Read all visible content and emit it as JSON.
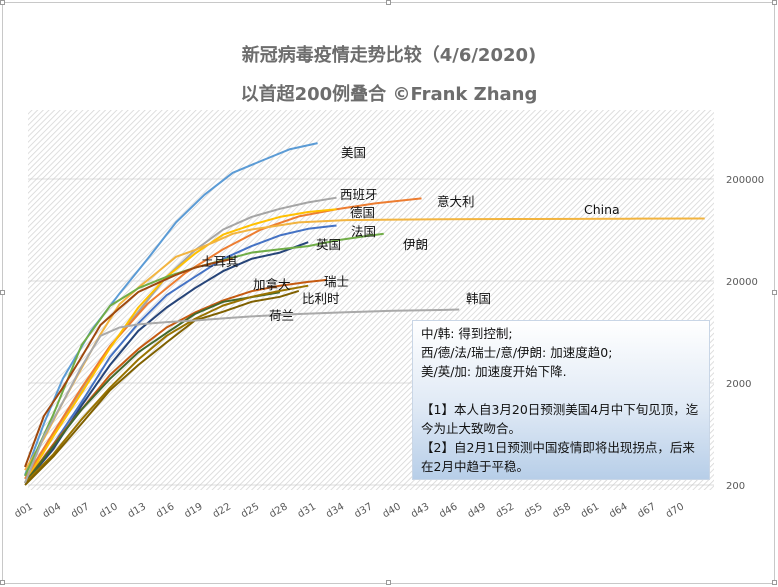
{
  "chart_data": {
    "type": "line",
    "title": "新冠病毒疫情走势比较（4/6/2020)",
    "subtitle": "以首超200例叠合 ©Frank Zhang",
    "y_scale": "log",
    "ylim": [
      200,
      600000
    ],
    "y_ticks": [
      {
        "value": 200,
        "label": "200"
      },
      {
        "value": 2000,
        "label": "2000"
      },
      {
        "value": 20000,
        "label": "20000"
      },
      {
        "value": 200000,
        "label": "200000"
      }
    ],
    "x_ticks": [
      "d01",
      "d04",
      "d07",
      "d10",
      "d13",
      "d16",
      "d19",
      "d22",
      "d25",
      "d28",
      "d31",
      "d34",
      "d37",
      "d40",
      "d43",
      "d46",
      "d49",
      "d52",
      "d55",
      "d58",
      "d61",
      "d64",
      "d67",
      "d70"
    ],
    "series": [
      {
        "name": "美国",
        "color": "#5b9bd5",
        "days": [
          1,
          3,
          5,
          8,
          11,
          14,
          17,
          20,
          23,
          26,
          29,
          32
        ],
        "values": [
          250,
          800,
          2200,
          6500,
          15000,
          33000,
          75000,
          140000,
          230000,
          300000,
          390000,
          450000
        ]
      },
      {
        "name": "西班牙",
        "color": "#a5a5a5",
        "days": [
          1,
          4,
          7,
          10,
          13,
          16,
          19,
          22,
          25,
          28,
          31,
          34
        ],
        "values": [
          230,
          600,
          1700,
          4500,
          10000,
          22000,
          40000,
          64000,
          85000,
          102000,
          118000,
          131000
        ]
      },
      {
        "name": "意大利",
        "color": "#ed7d31",
        "days": [
          1,
          4,
          7,
          10,
          14,
          18,
          22,
          26,
          30,
          34,
          38,
          43
        ],
        "values": [
          230,
          650,
          1800,
          4600,
          12000,
          24000,
          41000,
          64000,
          86000,
          101000,
          115000,
          129000
        ]
      },
      {
        "name": "德国",
        "color": "#ffc000",
        "days": [
          1,
          4,
          7,
          10,
          13,
          16,
          19,
          22,
          25,
          28,
          31,
          34
        ],
        "values": [
          210,
          600,
          1600,
          4400,
          11000,
          22000,
          37000,
          57000,
          71000,
          85000,
          95000,
          101000
        ]
      },
      {
        "name": "China",
        "color": "#f2b440",
        "days": [
          1,
          3,
          5,
          7,
          9,
          11,
          13,
          15,
          17,
          19,
          21,
          23,
          25,
          27,
          30,
          35,
          45,
          55,
          65,
          73
        ],
        "values": [
          280,
          570,
          1290,
          2800,
          6000,
          11800,
          17200,
          24300,
          34500,
          40200,
          48000,
          58000,
          64000,
          68000,
          75000,
          79000,
          80700,
          81000,
          81600,
          82000
        ]
      },
      {
        "name": "法国",
        "color": "#4472c4",
        "days": [
          1,
          4,
          7,
          10,
          13,
          16,
          19,
          22,
          25,
          28,
          31,
          34
        ],
        "values": [
          210,
          500,
          1300,
          3600,
          7700,
          14500,
          22000,
          33000,
          44000,
          56000,
          65000,
          70000
        ]
      },
      {
        "name": "英国",
        "color": "#264478",
        "days": [
          1,
          4,
          7,
          10,
          13,
          16,
          19,
          22,
          25,
          28,
          31
        ],
        "values": [
          210,
          450,
          1200,
          3000,
          6500,
          11000,
          17000,
          25000,
          33000,
          38000,
          48000
        ]
      },
      {
        "name": "伊朗",
        "color": "#70ad47",
        "days": [
          1,
          4,
          7,
          10,
          13,
          16,
          19,
          22,
          25,
          28,
          31,
          34,
          37,
          39
        ],
        "values": [
          245,
          980,
          4700,
          11400,
          17000,
          22000,
          27000,
          32000,
          38000,
          41000,
          44000,
          50000,
          55000,
          58000
        ]
      },
      {
        "name": "土耳其",
        "color": "#9e480e",
        "days": [
          1,
          3,
          5,
          7,
          9,
          11,
          13,
          15,
          17,
          19,
          21,
          23
        ],
        "values": [
          300,
          950,
          1800,
          3600,
          7400,
          10800,
          15600,
          19000,
          23000,
          27000,
          30000,
          33000
        ]
      },
      {
        "name": "瑞士",
        "color": "#c55a11",
        "days": [
          1,
          4,
          7,
          10,
          13,
          16,
          19,
          22,
          25,
          28,
          31,
          33
        ],
        "values": [
          210,
          500,
          1100,
          2400,
          4300,
          7000,
          9800,
          12900,
          15900,
          18000,
          19600,
          20500
        ]
      },
      {
        "name": "加拿大",
        "color": "#43682b",
        "days": [
          1,
          4,
          7,
          10,
          13,
          16,
          19,
          22,
          25,
          28
        ],
        "values": [
          210,
          480,
          1100,
          2200,
          4000,
          6200,
          9500,
          12500,
          13900,
          15500
        ]
      },
      {
        "name": "比利时",
        "color": "#997300",
        "days": [
          1,
          4,
          7,
          10,
          13,
          16,
          19,
          22,
          25,
          28,
          31
        ],
        "values": [
          210,
          400,
          880,
          1800,
          3400,
          5800,
          8500,
          11500,
          14000,
          16000,
          18000
        ]
      },
      {
        "name": "荷兰",
        "color": "#7f6000",
        "days": [
          1,
          4,
          7,
          10,
          13,
          16,
          19,
          22,
          25,
          28,
          30
        ],
        "values": [
          200,
          380,
          800,
          1700,
          3000,
          5000,
          8200,
          10000,
          12500,
          14000,
          16000
        ]
      },
      {
        "name": "韩国",
        "color": "#a9a9a9",
        "days": [
          1,
          3,
          5,
          7,
          9,
          11,
          13,
          16,
          19,
          22,
          25,
          30,
          35,
          40,
          45,
          47
        ],
        "values": [
          210,
          600,
          1300,
          2900,
          5800,
          7000,
          7500,
          7900,
          8200,
          8600,
          9000,
          9500,
          9900,
          10200,
          10400,
          10500
        ]
      }
    ]
  },
  "note": {
    "lines": [
      "中/韩: 得到控制;",
      "西/德/法/瑞士/意/伊朗: 加速度趋0;",
      "美/英/加: 加速度开始下降.",
      "",
      "【1】本人自3月20日预测美国4月中下旬见顶，迄今为止大致吻合。",
      "【2】自2月1日预测中国疫情即将出现拐点，后来在2月中趋于平稳。"
    ]
  }
}
